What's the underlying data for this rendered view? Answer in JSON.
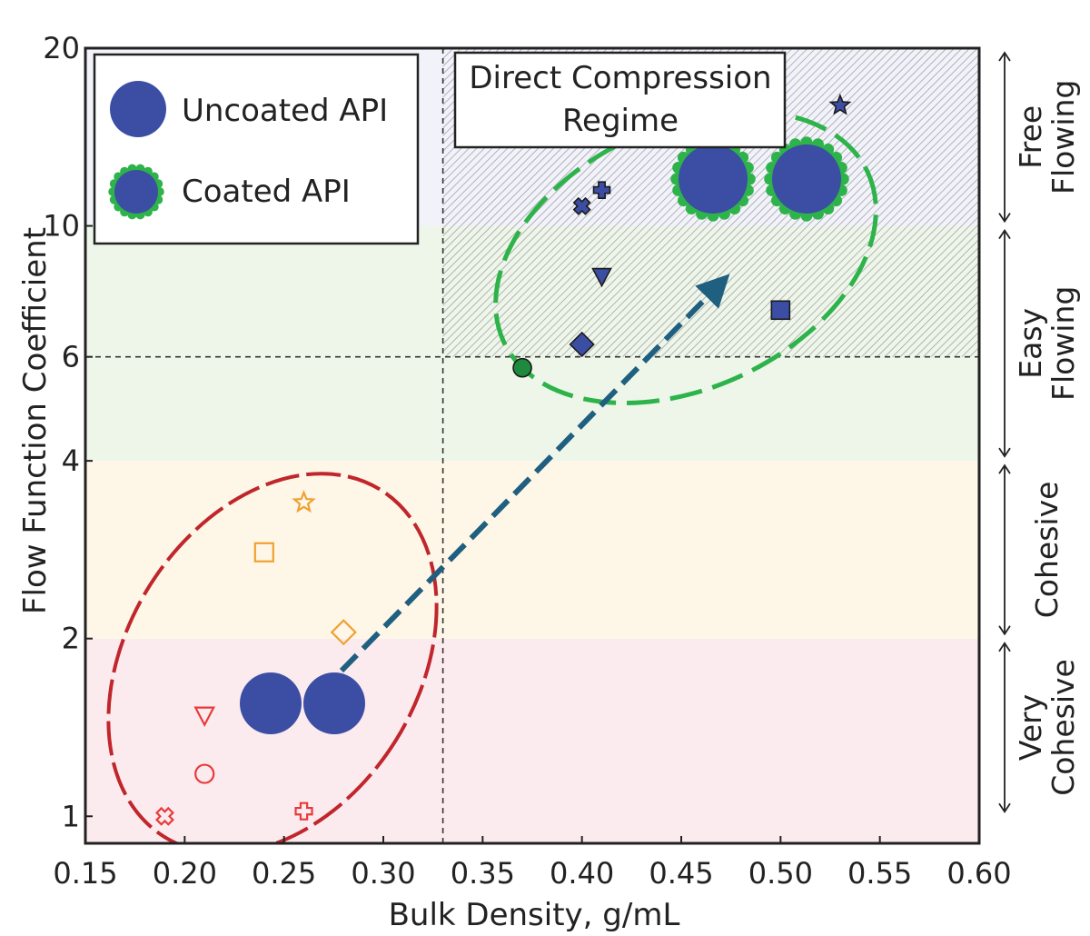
{
  "chart_data": {
    "type": "scatter",
    "xlabel": "Bulk Density, g/mL",
    "ylabel": "Flow Function Coefficient",
    "xlim": [
      0.15,
      0.6
    ],
    "ylim": [
      0.9,
      20
    ],
    "y_scale": "log",
    "x_ticks": [
      "0.15",
      "0.20",
      "0.25",
      "0.30",
      "0.35",
      "0.40",
      "0.45",
      "0.50",
      "0.55",
      "0.60"
    ],
    "y_ticks": [
      {
        "value": 1,
        "label": "1"
      },
      {
        "value": 2,
        "label": "2"
      },
      {
        "value": 4,
        "label": "4"
      },
      {
        "value": 6,
        "label": "6"
      },
      {
        "value": 10,
        "label": "10"
      },
      {
        "value": 20,
        "label": "20"
      }
    ],
    "reference_lines": {
      "x": 0.33,
      "y": 6
    },
    "flow_regions": [
      {
        "label_line1": "Very",
        "label_line2": "Cohesive",
        "from": 1,
        "to": 2,
        "color": "#fcebee"
      },
      {
        "label_line1": "Cohesive",
        "label_line2": "",
        "from": 2,
        "to": 4,
        "color": "#fef7e8"
      },
      {
        "label_line1": "Easy",
        "label_line2": "Flowing",
        "from": 4,
        "to": 10,
        "color": "#eef6ea"
      },
      {
        "label_line1": "Free",
        "label_line2": "Flowing",
        "from": 10,
        "to": 20,
        "color": "#f2f2fb"
      }
    ],
    "direct_compression": {
      "label_line1": "Direct Compression",
      "label_line2": "Regime",
      "x_min": 0.33,
      "y_min": 6
    },
    "legend": [
      {
        "label": "Uncoated API",
        "marker": "uncoated-particle"
      },
      {
        "label": "Coated API",
        "marker": "coated-particle"
      }
    ],
    "series": [
      {
        "group": "uncoated",
        "points": [
          {
            "x": 0.26,
            "y": 3.4,
            "marker": "star",
            "color": "#f0a030"
          },
          {
            "x": 0.24,
            "y": 2.8,
            "marker": "square",
            "color": "#f0a030"
          },
          {
            "x": 0.28,
            "y": 2.05,
            "marker": "diamond",
            "color": "#f0a030"
          },
          {
            "x": 0.21,
            "y": 1.48,
            "marker": "triangle-down",
            "color": "#e83a3a"
          },
          {
            "x": 0.21,
            "y": 1.18,
            "marker": "circle",
            "color": "#e83a3a"
          },
          {
            "x": 0.19,
            "y": 1.0,
            "marker": "x",
            "color": "#e83a3a"
          },
          {
            "x": 0.26,
            "y": 1.02,
            "marker": "plus",
            "color": "#e83a3a"
          }
        ]
      },
      {
        "group": "coated",
        "points": [
          {
            "x": 0.53,
            "y": 16,
            "marker": "star",
            "color": "#3b4ea3"
          },
          {
            "x": 0.41,
            "y": 11.5,
            "marker": "plus",
            "color": "#3b4ea3"
          },
          {
            "x": 0.4,
            "y": 10.8,
            "marker": "x",
            "color": "#3b4ea3"
          },
          {
            "x": 0.41,
            "y": 8.2,
            "marker": "triangle-down",
            "color": "#3b4ea3"
          },
          {
            "x": 0.5,
            "y": 7.2,
            "marker": "square",
            "color": "#3b4ea3"
          },
          {
            "x": 0.4,
            "y": 6.3,
            "marker": "diamond",
            "color": "#3b4ea3"
          },
          {
            "x": 0.37,
            "y": 5.75,
            "marker": "circle",
            "color": "#1e8a3e"
          }
        ]
      }
    ],
    "colors": {
      "uncoated_ellipse": "#c0262c",
      "coated_ellipse": "#2db34a",
      "arrow": "#1f5f80",
      "particle": "#3b4ea3",
      "coating": "#2db34a"
    }
  }
}
